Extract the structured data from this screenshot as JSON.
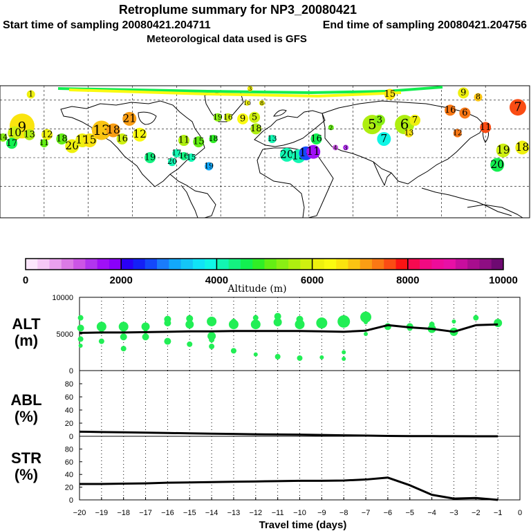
{
  "header": {
    "title": "Retroplume summary for NP3_20080421",
    "start_label": "Start time of sampling 20080421.204711",
    "end_label": "End time of sampling 20080421.204756",
    "met_label": "Meteorological data used is GFS"
  },
  "colors": {
    "line": "#000000",
    "dot_green": "#22ee55"
  },
  "chart_data": [
    {
      "type": "map",
      "name": "retroplume-map",
      "plume_labels": [
        {
          "text": "9",
          "lon": -165,
          "lat": 62,
          "alt": 6600,
          "size": 18
        },
        {
          "text": "10",
          "lon": -170,
          "lat": 57,
          "alt": 5800,
          "size": 10
        },
        {
          "text": "13",
          "lon": -160,
          "lat": 56,
          "alt": 5500,
          "size": 8
        },
        {
          "text": "12",
          "lon": -148,
          "lat": 56,
          "alt": 6000,
          "size": 8
        },
        {
          "text": "14",
          "lon": -178,
          "lat": 54,
          "alt": 5300,
          "size": 6
        },
        {
          "text": "17",
          "lon": -172,
          "lat": 50,
          "alt": 4600,
          "size": 8
        },
        {
          "text": "11",
          "lon": -150,
          "lat": 50,
          "alt": 5000,
          "size": 6
        },
        {
          "text": "18",
          "lon": -138,
          "lat": 53,
          "alt": 5200,
          "size": 8
        },
        {
          "text": "20",
          "lon": -131,
          "lat": 48,
          "alt": 6200,
          "size": 10
        },
        {
          "text": "17",
          "lon": -124,
          "lat": 52,
          "alt": 6000,
          "size": 10
        },
        {
          "text": "15",
          "lon": -119,
          "lat": 52,
          "alt": 6500,
          "size": 10
        },
        {
          "text": "13",
          "lon": -111,
          "lat": 59,
          "alt": 6800,
          "size": 14
        },
        {
          "text": "18",
          "lon": -103,
          "lat": 59,
          "alt": 7000,
          "size": 10
        },
        {
          "text": "21",
          "lon": -92,
          "lat": 67,
          "alt": 7100,
          "size": 10
        },
        {
          "text": "12",
          "lon": -85,
          "lat": 56,
          "alt": 6300,
          "size": 10
        },
        {
          "text": "16",
          "lon": -97,
          "lat": 53,
          "alt": 5800,
          "size": 8
        },
        {
          "text": "19",
          "lon": -78,
          "lat": 40,
          "alt": 4300,
          "size": 8
        },
        {
          "text": "20",
          "lon": -63,
          "lat": 37,
          "alt": 4200,
          "size": 6
        },
        {
          "text": "17",
          "lon": -60,
          "lat": 43,
          "alt": 4100,
          "size": 6
        },
        {
          "text": "16",
          "lon": -55,
          "lat": 41,
          "alt": 4300,
          "size": 6
        },
        {
          "text": "15",
          "lon": -50,
          "lat": 40,
          "alt": 4100,
          "size": 6
        },
        {
          "text": "11",
          "lon": -55,
          "lat": 52,
          "alt": 5600,
          "size": 8
        },
        {
          "text": "15",
          "lon": -45,
          "lat": 51,
          "alt": 5200,
          "size": 8
        },
        {
          "text": "18",
          "lon": -35,
          "lat": 53,
          "alt": 4900,
          "size": 6
        },
        {
          "text": "19",
          "lon": -38,
          "lat": 34,
          "alt": 3000,
          "size": 6
        },
        {
          "text": "16",
          "lon": -25,
          "lat": 68,
          "alt": 5800,
          "size": 6
        },
        {
          "text": "9",
          "lon": -15,
          "lat": 67,
          "alt": 6300,
          "size": 8
        },
        {
          "text": "5",
          "lon": -7,
          "lat": 68,
          "alt": 5800,
          "size": 8
        },
        {
          "text": "18",
          "lon": -6,
          "lat": 60,
          "alt": 5600,
          "size": 8
        },
        {
          "text": "19",
          "lon": -32,
          "lat": 68,
          "alt": 5400,
          "size": 6
        },
        {
          "text": "13",
          "lon": 5,
          "lat": 53,
          "alt": 4100,
          "size": 6
        },
        {
          "text": "20",
          "lon": 15,
          "lat": 42,
          "alt": 4200,
          "size": 10
        },
        {
          "text": "15",
          "lon": 23,
          "lat": 41,
          "alt": 4100,
          "size": 10
        },
        {
          "text": "14",
          "lon": 28,
          "lat": 43,
          "alt": 2600,
          "size": 10
        },
        {
          "text": "11",
          "lon": 33,
          "lat": 44,
          "alt": 1600,
          "size": 10
        },
        {
          "text": "16",
          "lon": 35,
          "lat": 53,
          "alt": 4600,
          "size": 8
        },
        {
          "text": "4",
          "lon": 48,
          "lat": 47,
          "alt": 1200,
          "size": 4
        },
        {
          "text": "3",
          "lon": 55,
          "lat": 47,
          "alt": 1300,
          "size": 4
        },
        {
          "text": "2",
          "lon": 45,
          "lat": 61,
          "alt": 5200,
          "size": 4
        },
        {
          "text": "7",
          "lon": 81,
          "lat": 53,
          "alt": 3800,
          "size": 10
        },
        {
          "text": "6",
          "lon": 95,
          "lat": 63,
          "alt": 5700,
          "size": 14
        },
        {
          "text": "5",
          "lon": 73,
          "lat": 63,
          "alt": 5500,
          "size": 14
        },
        {
          "text": "7",
          "lon": 102,
          "lat": 66,
          "alt": 6000,
          "size": 8
        },
        {
          "text": "3",
          "lon": 78,
          "lat": 66,
          "alt": 5300,
          "size": 8
        },
        {
          "text": "13",
          "lon": 98,
          "lat": 57,
          "alt": 6600,
          "size": 6
        },
        {
          "text": "15",
          "lon": 85,
          "lat": 84,
          "alt": 6700,
          "size": 8
        },
        {
          "text": "16",
          "lon": 126,
          "lat": 73,
          "alt": 7300,
          "size": 8
        },
        {
          "text": "6",
          "lon": 136,
          "lat": 71,
          "alt": 7400,
          "size": 8
        },
        {
          "text": "12",
          "lon": 131,
          "lat": 57,
          "alt": 7300,
          "size": 6
        },
        {
          "text": "11",
          "lon": 150,
          "lat": 61,
          "alt": 7500,
          "size": 8
        },
        {
          "text": "7",
          "lon": 172,
          "lat": 75,
          "alt": 7600,
          "size": 12
        },
        {
          "text": "8",
          "lon": 145,
          "lat": 82,
          "alt": 6800,
          "size": 6
        },
        {
          "text": "9",
          "lon": 135,
          "lat": 85,
          "alt": 6000,
          "size": 8
        },
        {
          "text": "19",
          "lon": 162,
          "lat": 45,
          "alt": 5900,
          "size": 10
        },
        {
          "text": "18",
          "lon": 175,
          "lat": 47,
          "alt": 6100,
          "size": 10
        },
        {
          "text": "20",
          "lon": 158,
          "lat": 35,
          "alt": 4600,
          "size": 10
        },
        {
          "text": "1",
          "lon": -159,
          "lat": 84,
          "alt": 6000,
          "size": 6
        },
        {
          "text": "3",
          "lon": -10,
          "lat": 88,
          "alt": 6000,
          "size": 4
        },
        {
          "text": "10",
          "lon": -12,
          "lat": 78,
          "alt": 6000,
          "size": 4
        },
        {
          "text": "8",
          "lon": -2,
          "lat": 78,
          "alt": 6000,
          "size": 4
        }
      ]
    },
    {
      "type": "colorbar",
      "name": "altitude-colorbar",
      "xlabel": "Altitude (m)",
      "range": [
        0,
        10000
      ],
      "ticks": [
        "0",
        "2000",
        "4000",
        "6000",
        "8000",
        "10000"
      ],
      "segments": [
        "#fce6fc",
        "#f6c8f6",
        "#eaa0ee",
        "#dc7ae6",
        "#cc55e6",
        "#b235ee",
        "#a010f6",
        "#8a00fa",
        "#2a00f6",
        "#1420f6",
        "#1448fa",
        "#1a7cfa",
        "#12a8fa",
        "#14c6f6",
        "#10e4f6",
        "#10f6e6",
        "#12f6b2",
        "#14f280",
        "#12f050",
        "#30ee26",
        "#64ee14",
        "#8aee14",
        "#aeee10",
        "#cef010",
        "#eef00e",
        "#fafa10",
        "#fae40e",
        "#fac412",
        "#fa9e14",
        "#fa7814",
        "#fa4c14",
        "#fa1414",
        "#f60a50",
        "#f20a82",
        "#ee0c9a",
        "#e810a6",
        "#c80e9e",
        "#a80e8e",
        "#8e0e82",
        "#6e0a72"
      ]
    },
    {
      "type": "line",
      "name": "alt-panel",
      "title": "ALT",
      "unit": "(m)",
      "ylim": [
        0,
        10000
      ],
      "yticks": [
        "10000",
        "5000",
        "0"
      ],
      "xlim": [
        -20,
        0
      ],
      "x": [
        -20,
        -19,
        -18,
        -17,
        -16,
        -15,
        -14,
        -13,
        -12,
        -11,
        -10,
        -9,
        -8,
        -7,
        -6,
        -5,
        -4,
        -3,
        -2,
        -1
      ],
      "mean": [
        5150,
        5200,
        5200,
        5250,
        5300,
        5350,
        5350,
        5400,
        5400,
        5400,
        5400,
        5350,
        5300,
        5450,
        6200,
        5900,
        5700,
        5300,
        6200,
        6300
      ],
      "dots": [
        {
          "x": -19.95,
          "y": [
            7200,
            5800,
            4300,
            3400
          ],
          "s": [
            4,
            5,
            4,
            3
          ]
        },
        {
          "x": -19,
          "y": [
            6000,
            4000,
            5300
          ],
          "s": [
            7,
            4,
            3
          ]
        },
        {
          "x": -18,
          "y": [
            6000,
            4600,
            3000,
            5500
          ],
          "s": [
            7,
            5,
            4,
            3
          ]
        },
        {
          "x": -17,
          "y": [
            6000,
            4600,
            5300
          ],
          "s": [
            6,
            5,
            3
          ]
        },
        {
          "x": -16,
          "y": [
            6500,
            7000,
            4000
          ],
          "s": [
            5,
            5,
            5
          ]
        },
        {
          "x": -15,
          "y": [
            6300,
            7100,
            3600
          ],
          "s": [
            6,
            5,
            4
          ]
        },
        {
          "x": -14,
          "y": [
            6700,
            4700,
            4200,
            3300
          ],
          "s": [
            7,
            6,
            4,
            4
          ]
        },
        {
          "x": -13,
          "y": [
            6300,
            6700,
            2700
          ],
          "s": [
            7,
            4,
            4
          ]
        },
        {
          "x": -12,
          "y": [
            6300,
            7200,
            2200
          ],
          "s": [
            7,
            4,
            3
          ]
        },
        {
          "x": -11,
          "y": [
            6600,
            7400,
            6900,
            1900
          ],
          "s": [
            6,
            5,
            4,
            4
          ]
        },
        {
          "x": -10,
          "y": [
            6300,
            7000,
            1700
          ],
          "s": [
            7,
            5,
            4
          ]
        },
        {
          "x": -9,
          "y": [
            6500,
            6700,
            1800
          ],
          "s": [
            8,
            4,
            3
          ]
        },
        {
          "x": -8,
          "y": [
            6700,
            6300,
            2500,
            1600
          ],
          "s": [
            9,
            4,
            3,
            3
          ]
        },
        {
          "x": -7,
          "y": [
            7300,
            6600,
            5000
          ],
          "s": [
            8,
            3,
            3
          ]
        },
        {
          "x": -6,
          "y": [
            6000
          ],
          "s": [
            5
          ]
        },
        {
          "x": -5,
          "y": [
            6000,
            5800
          ],
          "s": [
            5,
            4
          ]
        },
        {
          "x": -4,
          "y": [
            6300,
            5700
          ],
          "s": [
            4,
            6
          ]
        },
        {
          "x": -3,
          "y": [
            6700,
            5300
          ],
          "s": [
            3,
            6
          ]
        },
        {
          "x": -2,
          "y": [
            7200
          ],
          "s": [
            4
          ]
        },
        {
          "x": -1,
          "y": [
            6500
          ],
          "s": [
            6
          ]
        }
      ]
    },
    {
      "type": "line",
      "name": "abl-panel",
      "title": "ABL",
      "unit": "(%)",
      "ylim": [
        0,
        100
      ],
      "yticks": [
        "80",
        "60",
        "40",
        "20",
        "0"
      ],
      "xlim": [
        -20,
        0
      ],
      "x": [
        -20,
        -19,
        -18,
        -17,
        -16,
        -15,
        -14,
        -13,
        -12,
        -11,
        -10,
        -9,
        -8,
        -7,
        -6,
        -5,
        -4,
        -3,
        -2,
        -1
      ],
      "values": [
        7,
        6.5,
        6,
        5.5,
        5,
        4.5,
        4,
        3.5,
        3,
        2.8,
        2.5,
        2,
        1.5,
        1,
        0.5,
        0.3,
        0.2,
        0.1,
        0,
        0
      ]
    },
    {
      "type": "line",
      "name": "str-panel",
      "title": "STR",
      "unit": "(%)",
      "ylim": [
        0,
        100
      ],
      "yticks": [
        "80",
        "60",
        "40",
        "20",
        "0"
      ],
      "xlim": [
        -20,
        0
      ],
      "xlabel": "Travel time (days)",
      "xticks": [
        "-20",
        "-19",
        "-18",
        "-17",
        "-16",
        "-15",
        "-14",
        "-13",
        "-12",
        "-11",
        "-10",
        "-9",
        "-8",
        "-7",
        "-6",
        "-5",
        "-4",
        "-3",
        "-2",
        "-1",
        "0"
      ],
      "x": [
        -20,
        -19,
        -18,
        -17,
        -16,
        -15,
        -14,
        -13,
        -12,
        -11,
        -10,
        -9,
        -8,
        -7,
        -6,
        -5,
        -4,
        -3,
        -2,
        -1
      ],
      "values": [
        25,
        25,
        25.5,
        26,
        27,
        27.5,
        28,
        28.5,
        29,
        29.5,
        30,
        30,
        30.5,
        32,
        35,
        23,
        8,
        2,
        3,
        0
      ]
    }
  ]
}
